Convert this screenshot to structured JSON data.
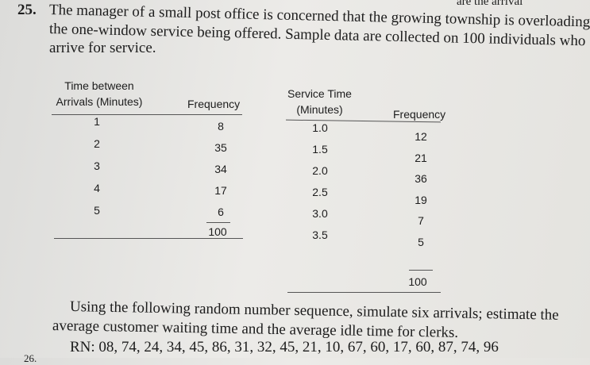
{
  "header": {
    "corner_text": "are the arrival"
  },
  "problem": {
    "number": "25.",
    "lines": [
      "The manager of a small post office is concerned that the growing township is overloading",
      "the one-window service being offered. Sample data are collected on 100 individuals who",
      "arrive for service."
    ]
  },
  "arrival_table": {
    "headers": [
      "Time between Arrivals (Minutes)",
      "Frequency"
    ],
    "rows": [
      [
        "1",
        "8"
      ],
      [
        "2",
        "35"
      ],
      [
        "3",
        "34"
      ],
      [
        "4",
        "17"
      ],
      [
        "5",
        "6"
      ]
    ],
    "total": "100"
  },
  "service_table": {
    "headers": [
      "Service Time (Minutes)",
      "Frequency"
    ],
    "rows": [
      [
        "1.0",
        "12"
      ],
      [
        "1.5",
        "21"
      ],
      [
        "2.0",
        "36"
      ],
      [
        "2.5",
        "19"
      ],
      [
        "3.0",
        "7"
      ],
      [
        "3.5",
        "5"
      ]
    ],
    "total": "100"
  },
  "instructions": {
    "lines": [
      "Using the following random number sequence, simulate six arrivals; estimate the",
      "average customer waiting time and the average idle time for clerks."
    ],
    "random_numbers": "RN: 08, 74, 24, 34, 45, 86, 31, 32, 45, 21, 10, 67, 60, 17, 60, 87, 74, 96"
  },
  "footer": {
    "next_number": "26."
  }
}
